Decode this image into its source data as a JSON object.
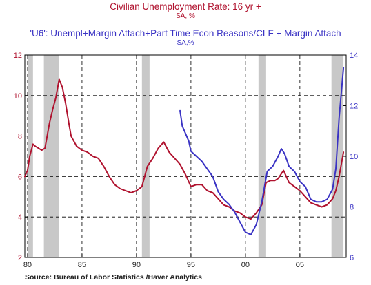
{
  "titles": {
    "line1": "Civilian Unemployment Rate: 16 yr +",
    "line1_sub": "SA, %",
    "line2": "'U6': Unempl+Margin Attach+Part Time Econ Reasons/CLF + Margin Attach",
    "line2_sub": "SA,%"
  },
  "source": "Source:  Bureau of Labor Statistics /Haver Analytics",
  "colors": {
    "unrate": "#b0122e",
    "u6": "#3a33c4",
    "recession": "#c8c8c8",
    "grid": "#000000"
  },
  "chart_data": {
    "type": "line",
    "x_ticks": [
      {
        "x": 1980,
        "label": "80"
      },
      {
        "x": 1985,
        "label": "85"
      },
      {
        "x": 1990,
        "label": "90"
      },
      {
        "x": 1995,
        "label": "95"
      },
      {
        "x": 2000,
        "label": "00"
      },
      {
        "x": 2005,
        "label": "05"
      }
    ],
    "xlim": [
      1979.75,
      2009.25
    ],
    "ylim_left": [
      2,
      12
    ],
    "yticks_left": [
      2,
      4,
      6,
      8,
      10,
      12
    ],
    "ylim_right": [
      6,
      14
    ],
    "yticks_right": [
      6,
      8,
      10,
      12,
      14
    ],
    "grid": true,
    "recessions": [
      [
        1980.0,
        1980.5
      ],
      [
        1981.5,
        1982.9
      ],
      [
        1990.5,
        1991.2
      ],
      [
        2001.2,
        2001.9
      ],
      [
        2007.9,
        2009.0
      ]
    ],
    "series": [
      {
        "axis": "left",
        "values": [
          [
            1979.75,
            6.0
          ],
          [
            1980.0,
            6.3
          ],
          [
            1980.2,
            7.0
          ],
          [
            1980.5,
            7.6
          ],
          [
            1980.7,
            7.5
          ],
          [
            1981.0,
            7.4
          ],
          [
            1981.3,
            7.3
          ],
          [
            1981.6,
            7.4
          ],
          [
            1981.8,
            8.0
          ],
          [
            1982.0,
            8.6
          ],
          [
            1982.3,
            9.3
          ],
          [
            1982.6,
            9.9
          ],
          [
            1982.9,
            10.8
          ],
          [
            1983.2,
            10.4
          ],
          [
            1983.5,
            9.6
          ],
          [
            1983.8,
            8.6
          ],
          [
            1984.0,
            8.0
          ],
          [
            1984.5,
            7.5
          ],
          [
            1985.0,
            7.3
          ],
          [
            1985.5,
            7.2
          ],
          [
            1986.0,
            7.0
          ],
          [
            1986.5,
            6.9
          ],
          [
            1987.0,
            6.5
          ],
          [
            1987.5,
            6.0
          ],
          [
            1988.0,
            5.6
          ],
          [
            1988.5,
            5.4
          ],
          [
            1989.0,
            5.3
          ],
          [
            1989.5,
            5.2
          ],
          [
            1990.0,
            5.3
          ],
          [
            1990.5,
            5.5
          ],
          [
            1991.0,
            6.5
          ],
          [
            1991.5,
            6.9
          ],
          [
            1992.0,
            7.4
          ],
          [
            1992.5,
            7.7
          ],
          [
            1993.0,
            7.2
          ],
          [
            1993.5,
            6.9
          ],
          [
            1994.0,
            6.6
          ],
          [
            1994.5,
            6.1
          ],
          [
            1995.0,
            5.5
          ],
          [
            1995.5,
            5.6
          ],
          [
            1996.0,
            5.6
          ],
          [
            1996.5,
            5.3
          ],
          [
            1997.0,
            5.2
          ],
          [
            1997.5,
            4.9
          ],
          [
            1998.0,
            4.6
          ],
          [
            1998.5,
            4.5
          ],
          [
            1999.0,
            4.3
          ],
          [
            1999.5,
            4.2
          ],
          [
            2000.0,
            4.0
          ],
          [
            2000.5,
            3.9
          ],
          [
            2001.0,
            4.2
          ],
          [
            2001.5,
            4.6
          ],
          [
            2001.9,
            5.7
          ],
          [
            2002.3,
            5.8
          ],
          [
            2002.7,
            5.8
          ],
          [
            2003.0,
            5.9
          ],
          [
            2003.5,
            6.3
          ],
          [
            2004.0,
            5.7
          ],
          [
            2004.5,
            5.5
          ],
          [
            2005.0,
            5.3
          ],
          [
            2005.5,
            5.0
          ],
          [
            2006.0,
            4.7
          ],
          [
            2006.5,
            4.6
          ],
          [
            2007.0,
            4.5
          ],
          [
            2007.5,
            4.6
          ],
          [
            2008.0,
            4.9
          ],
          [
            2008.3,
            5.3
          ],
          [
            2008.6,
            6.0
          ],
          [
            2009.0,
            7.2
          ]
        ]
      },
      {
        "axis": "right",
        "values": [
          [
            1994.0,
            11.8
          ],
          [
            1994.2,
            11.2
          ],
          [
            1994.5,
            10.9
          ],
          [
            1994.8,
            10.6
          ],
          [
            1995.0,
            10.2
          ],
          [
            1995.5,
            10.0
          ],
          [
            1996.0,
            9.8
          ],
          [
            1996.5,
            9.5
          ],
          [
            1997.0,
            9.2
          ],
          [
            1997.5,
            8.6
          ],
          [
            1998.0,
            8.3
          ],
          [
            1998.5,
            8.1
          ],
          [
            1999.0,
            7.8
          ],
          [
            1999.5,
            7.4
          ],
          [
            2000.0,
            7.0
          ],
          [
            2000.5,
            6.9
          ],
          [
            2001.0,
            7.3
          ],
          [
            2001.5,
            8.2
          ],
          [
            2002.0,
            9.4
          ],
          [
            2002.5,
            9.6
          ],
          [
            2003.0,
            10.0
          ],
          [
            2003.3,
            10.3
          ],
          [
            2003.6,
            10.1
          ],
          [
            2004.0,
            9.6
          ],
          [
            2004.5,
            9.4
          ],
          [
            2005.0,
            9.0
          ],
          [
            2005.5,
            8.8
          ],
          [
            2006.0,
            8.3
          ],
          [
            2006.5,
            8.2
          ],
          [
            2007.0,
            8.2
          ],
          [
            2007.5,
            8.3
          ],
          [
            2008.0,
            8.7
          ],
          [
            2008.3,
            9.5
          ],
          [
            2008.6,
            11.5
          ],
          [
            2009.0,
            13.5
          ]
        ]
      }
    ]
  }
}
